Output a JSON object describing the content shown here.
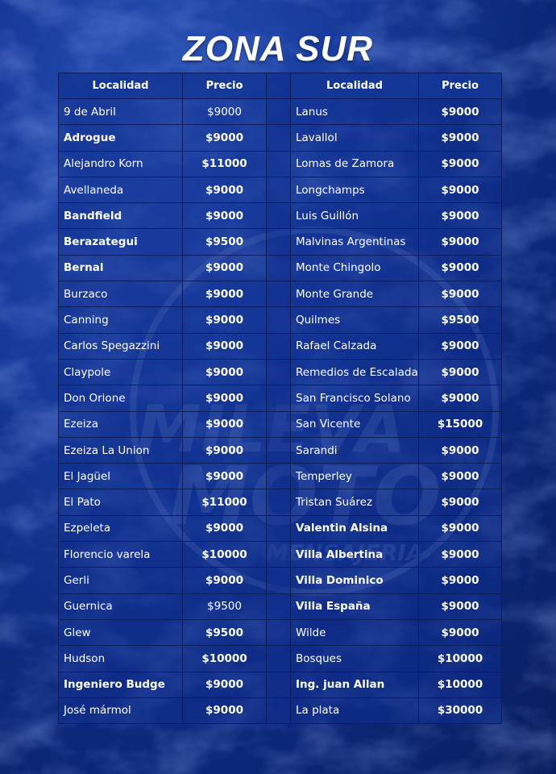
{
  "title": "ZONA SUR",
  "watermark": {
    "line1": "MILEVA",
    "line2": "MOTO",
    "line3": "MENSAJERIA"
  },
  "headers": {
    "localidad": "Localidad",
    "precio": "Precio"
  },
  "left": [
    {
      "name": "9 de Abril",
      "price": "$9000",
      "bold": false,
      "price_bold": false
    },
    {
      "name": "Adrogue",
      "price": "$9000",
      "bold": true,
      "price_bold": true
    },
    {
      "name": "Alejandro Korn",
      "price": "$11000",
      "bold": false,
      "price_bold": true
    },
    {
      "name": "Avellaneda",
      "price": "$9000",
      "bold": false,
      "price_bold": true
    },
    {
      "name": "Bandfield",
      "price": "$9000",
      "bold": true,
      "price_bold": true
    },
    {
      "name": "Berazategui",
      "price": "$9500",
      "bold": true,
      "price_bold": true
    },
    {
      "name": "Bernal",
      "price": "$9000",
      "bold": true,
      "price_bold": true
    },
    {
      "name": "Burzaco",
      "price": "$9000",
      "bold": false,
      "price_bold": true
    },
    {
      "name": "Canning",
      "price": "$9000",
      "bold": false,
      "price_bold": true
    },
    {
      "name": "Carlos Spegazzini",
      "price": "$9000",
      "bold": false,
      "price_bold": true
    },
    {
      "name": "Claypole",
      "price": "$9000",
      "bold": false,
      "price_bold": true
    },
    {
      "name": "Don Orione",
      "price": "$9000",
      "bold": false,
      "price_bold": true
    },
    {
      "name": "Ezeiza",
      "price": "$9000",
      "bold": false,
      "price_bold": true
    },
    {
      "name": "Ezeiza La Union",
      "price": "$9000",
      "bold": false,
      "price_bold": true
    },
    {
      "name": "El Jagüel",
      "price": "$9000",
      "bold": false,
      "price_bold": true
    },
    {
      "name": "El Pato",
      "price": "$11000",
      "bold": false,
      "price_bold": true
    },
    {
      "name": "Ezpeleta",
      "price": "$9000",
      "bold": false,
      "price_bold": true
    },
    {
      "name": "Florencio varela",
      "price": "$10000",
      "bold": false,
      "price_bold": true
    },
    {
      "name": "Gerli",
      "price": "$9000",
      "bold": false,
      "price_bold": true
    },
    {
      "name": "Guernica",
      "price": "$9500",
      "bold": false,
      "price_bold": false
    },
    {
      "name": "Glew",
      "price": "$9500",
      "bold": false,
      "price_bold": true
    },
    {
      "name": "Hudson",
      "price": "$10000",
      "bold": false,
      "price_bold": true
    },
    {
      "name": "Ingeniero Budge",
      "price": "$9000",
      "bold": true,
      "price_bold": true
    },
    {
      "name": "José mármol",
      "price": "$9000",
      "bold": false,
      "price_bold": true
    }
  ],
  "right": [
    {
      "name": "Lanus",
      "price": "$9000",
      "bold": false,
      "price_bold": true
    },
    {
      "name": "Lavallol",
      "price": "$9000",
      "bold": false,
      "price_bold": true
    },
    {
      "name": "Lomas de Zamora",
      "price": "$9000",
      "bold": false,
      "price_bold": true
    },
    {
      "name": "Longchamps",
      "price": "$9000",
      "bold": false,
      "price_bold": true
    },
    {
      "name": "Luis Guillón",
      "price": "$9000",
      "bold": false,
      "price_bold": true
    },
    {
      "name": "Malvinas Argentinas",
      "price": "$9000",
      "bold": false,
      "price_bold": true
    },
    {
      "name": "Monte Chingolo",
      "price": "$9000",
      "bold": false,
      "price_bold": true
    },
    {
      "name": "Monte Grande",
      "price": "$9000",
      "bold": false,
      "price_bold": true
    },
    {
      "name": "Quilmes",
      "price": "$9500",
      "bold": false,
      "price_bold": true
    },
    {
      "name": "Rafael Calzada",
      "price": "$9000",
      "bold": false,
      "price_bold": true
    },
    {
      "name": "Remedios de Escalada",
      "price": "$9000",
      "bold": false,
      "price_bold": true
    },
    {
      "name": "San Francisco Solano",
      "price": "$9000",
      "bold": false,
      "price_bold": true
    },
    {
      "name": "San Vicente",
      "price": "$15000",
      "bold": false,
      "price_bold": true
    },
    {
      "name": "Sarandi",
      "price": "$9000",
      "bold": false,
      "price_bold": true
    },
    {
      "name": "Temperley",
      "price": "$9000",
      "bold": false,
      "price_bold": true
    },
    {
      "name": "Tristan Suárez",
      "price": "$9000",
      "bold": false,
      "price_bold": true
    },
    {
      "name": "Valentin Alsina",
      "price": "$9000",
      "bold": true,
      "price_bold": true
    },
    {
      "name": "Villa Albertina",
      "price": "$9000",
      "bold": true,
      "price_bold": true
    },
    {
      "name": "Villa Dominico",
      "price": "$9000",
      "bold": true,
      "price_bold": true
    },
    {
      "name": "Villa España",
      "price": "$9000",
      "bold": true,
      "price_bold": true
    },
    {
      "name": "Wilde",
      "price": "$9000",
      "bold": false,
      "price_bold": true
    },
    {
      "name": "Bosques",
      "price": "$10000",
      "bold": false,
      "price_bold": true
    },
    {
      "name": "Ing. juan Allan",
      "price": "$10000",
      "bold": true,
      "price_bold": true
    },
    {
      "name": "La plata",
      "price": "$30000",
      "bold": false,
      "price_bold": true
    }
  ]
}
